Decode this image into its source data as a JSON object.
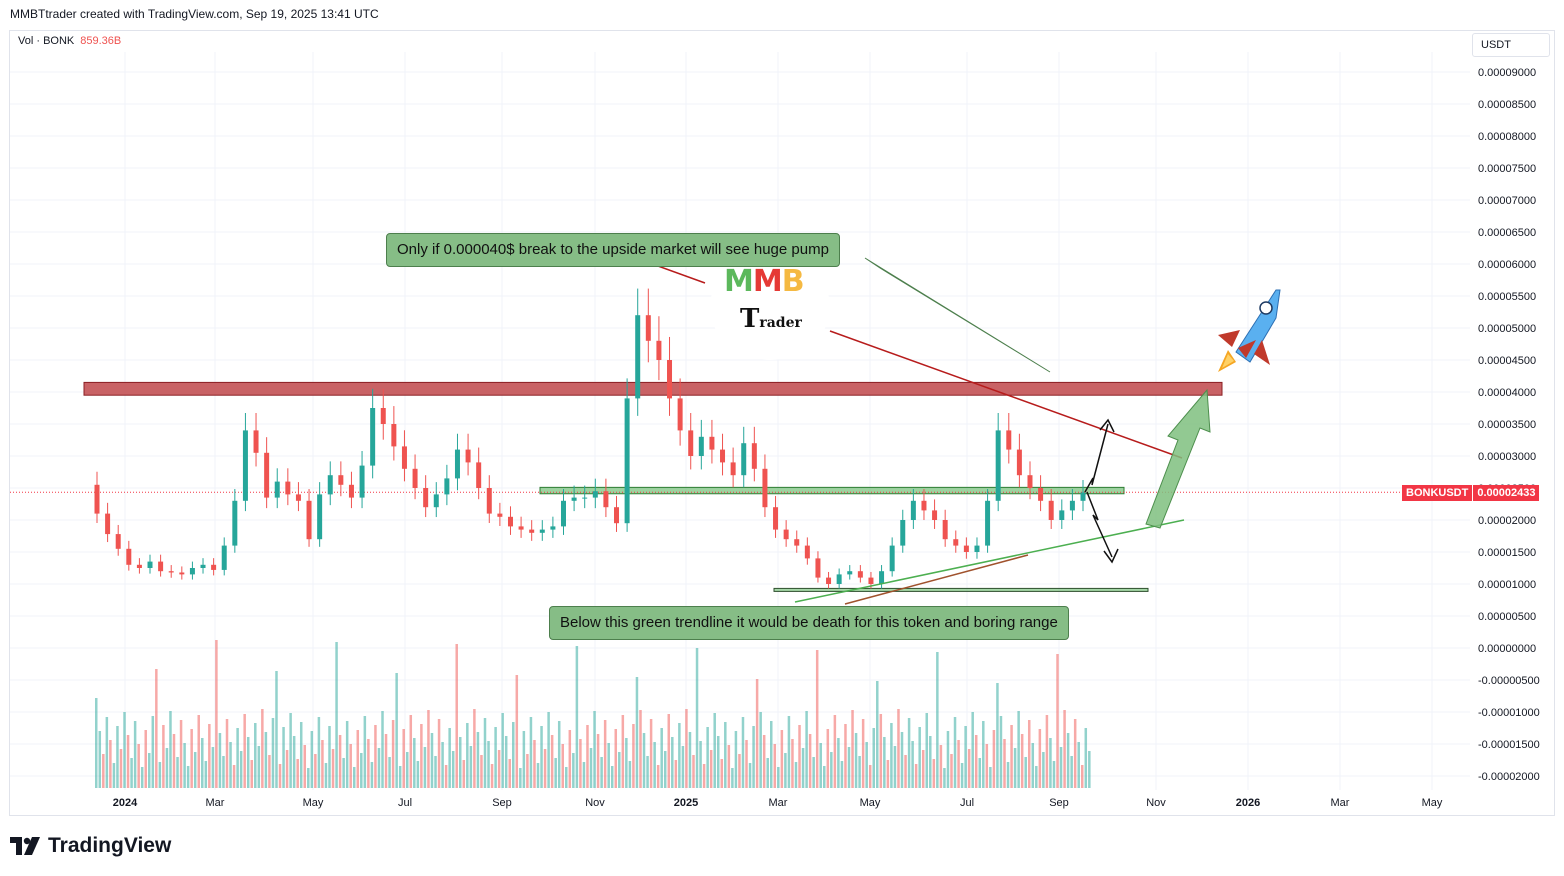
{
  "header": {
    "text": "MMBTtrader created with TradingView.com, Sep 19, 2025 13:41 UTC"
  },
  "volume_legend": {
    "label": "Vol · BONK",
    "value": "859.36B"
  },
  "currency": "USDT",
  "price_tag": {
    "symbol": "BONKUSDT",
    "price": "0.00002433"
  },
  "annotations": {
    "top": "Only if 0.000040$ break to the upside market will see huge pump",
    "bottom": "Below this green trendline it would be death for this token and boring range"
  },
  "logo": {
    "letters": [
      "M",
      "M",
      "B"
    ],
    "line2_big": "T",
    "line2_small": "rader"
  },
  "footer": {
    "brand": "TradingView"
  },
  "colors": {
    "up": "#26a69a",
    "down": "#ef5350",
    "resistance": "#c0474a",
    "support": "#4caf50",
    "trendline_green": "#4caf50",
    "trendline_red": "#b71c1c",
    "accent": "#f23645"
  },
  "chart_data": {
    "type": "candlestick",
    "symbol": "BONKUSDT",
    "interval": "weekly",
    "y_ticks": [
      "0.00009000",
      "0.00008500",
      "0.00008000",
      "0.00007500",
      "0.00007000",
      "0.00006500",
      "0.00006000",
      "0.00005500",
      "0.00005000",
      "0.00004500",
      "0.00004000",
      "0.00003500",
      "0.00003000",
      "0.00002500",
      "0.00002000",
      "0.00001500",
      "0.00001000",
      "0.00000500",
      "0.00000000",
      "-0.00000500",
      "-0.00001000",
      "-0.00001500",
      "-0.00002000"
    ],
    "x_ticks": [
      {
        "label": "2024",
        "bold": true
      },
      {
        "label": "Mar"
      },
      {
        "label": "May"
      },
      {
        "label": "Jul"
      },
      {
        "label": "Sep"
      },
      {
        "label": "Nov"
      },
      {
        "label": "2025",
        "bold": true
      },
      {
        "label": "Mar"
      },
      {
        "label": "May"
      },
      {
        "label": "Jul"
      },
      {
        "label": "Sep"
      },
      {
        "label": "Nov"
      },
      {
        "label": "2026",
        "bold": true
      },
      {
        "label": "Mar"
      },
      {
        "label": "May"
      }
    ],
    "price_close_series": [
      2.1e-05,
      1.78e-05,
      1.55e-05,
      1.3e-05,
      1.25e-05,
      1.35e-05,
      1.2e-05,
      1.18e-05,
      1.15e-05,
      1.25e-05,
      1.3e-05,
      1.22e-05,
      1.6e-05,
      2.3e-05,
      3.4e-05,
      3.05e-05,
      2.35e-05,
      2.6e-05,
      2.4e-05,
      2.3e-05,
      1.7e-05,
      2.4e-05,
      2.7e-05,
      2.55e-05,
      2.35e-05,
      2.85e-05,
      3.75e-05,
      3.5e-05,
      3.15e-05,
      2.8e-05,
      2.5e-05,
      2.2e-05,
      2.4e-05,
      2.65e-05,
      3.1e-05,
      2.9e-05,
      2.5e-05,
      2.1e-05,
      2.05e-05,
      1.9e-05,
      1.85e-05,
      1.8e-05,
      1.85e-05,
      1.9e-05,
      2.3e-05,
      2.35e-05,
      2.35e-05,
      2.45e-05,
      2.2e-05,
      1.95e-05,
      3.9e-05,
      5.2e-05,
      4.8e-05,
      4.5e-05,
      3.9e-05,
      3.4e-05,
      3e-05,
      3.3e-05,
      3.1e-05,
      2.9e-05,
      2.7e-05,
      3.2e-05,
      2.8e-05,
      2.2e-05,
      1.85e-05,
      1.7e-05,
      1.6e-05,
      1.4e-05,
      1.1e-05,
      1e-05,
      1.15e-05,
      1.2e-05,
      1.1e-05,
      1e-05,
      1.2e-05,
      1.6e-05,
      2e-05,
      2.3e-05,
      2.15e-05,
      2e-05,
      1.7e-05,
      1.6e-05,
      1.5e-05,
      1.6e-05,
      2.3e-05,
      3.4e-05,
      3.1e-05,
      2.7e-05,
      2.5e-05,
      2.3e-05,
      2e-05,
      2.15e-05,
      2.3e-05,
      2.43e-05
    ],
    "horizontal_levels": [
      {
        "name": "resistance_zone",
        "from": 3.95e-05,
        "to": 4.15e-05
      },
      {
        "name": "mid_zone",
        "from": 2.41e-05,
        "to": 2.51e-05
      },
      {
        "name": "bottom_line",
        "value": 9e-06
      }
    ],
    "current_price": 2.433e-05,
    "ylim": [
      -2.05e-05,
      9.15e-05
    ]
  }
}
